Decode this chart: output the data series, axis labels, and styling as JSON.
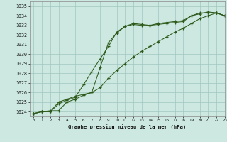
{
  "title": "Graphe pression niveau de la mer (hPa)",
  "xlim": [
    -0.5,
    23
  ],
  "ylim": [
    1023.5,
    1035.5
  ],
  "yticks": [
    1024,
    1025,
    1026,
    1027,
    1028,
    1029,
    1030,
    1031,
    1032,
    1033,
    1034,
    1035
  ],
  "xticks": [
    0,
    1,
    2,
    3,
    4,
    5,
    6,
    7,
    8,
    9,
    10,
    11,
    12,
    13,
    14,
    15,
    16,
    17,
    18,
    19,
    20,
    21,
    22,
    23
  ],
  "bg_color": "#cce8e0",
  "grid_color": "#a0c8be",
  "line_color": "#2d5a1b",
  "line1_y": [
    1023.8,
    1024.0,
    1024.0,
    1024.8,
    1025.2,
    1025.5,
    1026.8,
    1028.2,
    1029.5,
    1030.8,
    1032.3,
    1032.9,
    1033.2,
    1033.1,
    1033.0,
    1033.1,
    1033.2,
    1033.3,
    1033.4,
    1034.0,
    1034.3,
    1034.3,
    1034.3,
    1034.0
  ],
  "line2_y": [
    1023.8,
    1024.0,
    1024.0,
    1025.0,
    1025.3,
    1025.6,
    1025.8,
    1026.0,
    1028.6,
    1031.2,
    1032.2,
    1032.9,
    1033.1,
    1033.0,
    1033.0,
    1033.2,
    1033.3,
    1033.4,
    1033.5,
    1034.0,
    1034.2,
    1034.4,
    1034.3,
    1034.0
  ],
  "line3_y": [
    1023.8,
    1024.0,
    1024.1,
    1024.1,
    1025.0,
    1025.3,
    1025.7,
    1026.0,
    1026.5,
    1027.5,
    1028.3,
    1029.0,
    1029.7,
    1030.3,
    1030.8,
    1031.3,
    1031.8,
    1032.3,
    1032.7,
    1033.2,
    1033.7,
    1034.0,
    1034.3,
    1034.0
  ]
}
